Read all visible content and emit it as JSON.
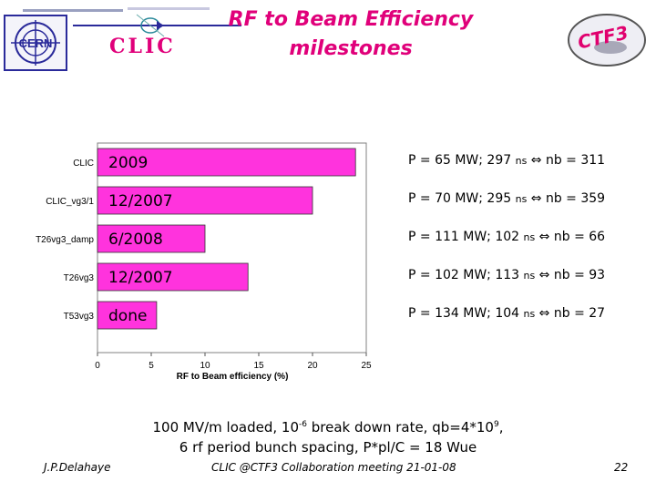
{
  "title_line1": "RF to Beam Efficiency",
  "title_line2": "milestones",
  "logos": {
    "cern": "CERN",
    "clic": "CLIC",
    "ctf3": "CTF3"
  },
  "chart_data": {
    "type": "bar",
    "orientation": "horizontal",
    "categories": [
      "CLIC",
      "CLIC_vg3/1",
      "T26vg3_damp",
      "T26vg3",
      "T53vg3"
    ],
    "values": [
      24,
      20,
      10,
      14,
      5.5
    ],
    "bar_labels": [
      "2009",
      "12/2007",
      "6/2008",
      "12/2007",
      "done"
    ],
    "xlabel": "RF to Beam efficiency (%)",
    "ylabel": "",
    "xlim": [
      0,
      25
    ],
    "xticks": [
      "0",
      "5",
      "10",
      "15",
      "20",
      "25"
    ],
    "bar_color": "#ff33dd",
    "grid": false
  },
  "annotations": [
    {
      "prefix": "P = 65 MW; 297",
      "ns": "ns",
      "suffix": " nb = 311"
    },
    {
      "prefix": "P = 70 MW; 295",
      "ns": "ns",
      "suffix": " nb = 359"
    },
    {
      "prefix": "P = 111 MW; 102",
      "ns": "ns",
      "suffix": " nb = 66"
    },
    {
      "prefix": "P = 102 MW; 113",
      "ns": "ns",
      "suffix": " nb = 93"
    },
    {
      "prefix": "P = 134 MW; 104",
      "ns": "ns",
      "suffix": " nb = 27"
    }
  ],
  "implies_symbol": "⇔",
  "summary": {
    "line1_a": "100 MV/m loaded, 10",
    "line1_sup1": "-6",
    "line1_b": " break down rate, qb=4*10",
    "line1_sup2": "9",
    "line1_c": ",",
    "line2": "6 rf period bunch spacing, P*pl/C = 18 Wue"
  },
  "footer": {
    "author": "J.P.Delahaye",
    "meeting": "CLIC @CTF3 Collaboration meeting 21-01-08",
    "page": "22"
  }
}
